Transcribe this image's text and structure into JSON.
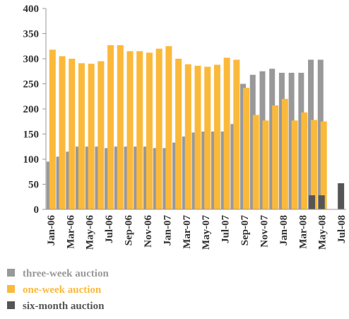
{
  "chart_data": {
    "type": "bar",
    "categories": [
      "Jan-06",
      null,
      "Mar-06",
      null,
      "May-06",
      null,
      "Jul-06",
      null,
      "Sep-06",
      null,
      "Nov-06",
      null,
      "Jan-07",
      null,
      "Mar-07",
      null,
      "May-07",
      null,
      "Jul-07",
      null,
      "Sep-07",
      null,
      "Nov-07",
      null,
      "Jan-08",
      null,
      "Mar-08",
      null,
      "May-08",
      null,
      "Jul-08"
    ],
    "series": [
      {
        "name": "three-week auction",
        "color": "#999999",
        "values": [
          95,
          105,
          115,
          125,
          125,
          125,
          122,
          125,
          125,
          125,
          125,
          122,
          122,
          133,
          145,
          153,
          155,
          155,
          155,
          170,
          250,
          268,
          275,
          280,
          272,
          272,
          272,
          298,
          298,
          null,
          null
        ]
      },
      {
        "name": "one-week auction",
        "color": "#fbb93b",
        "values": [
          318,
          305,
          300,
          291,
          290,
          295,
          327,
          327,
          315,
          315,
          312,
          320,
          325,
          300,
          289,
          286,
          284,
          288,
          302,
          298,
          242,
          188,
          177,
          207,
          220,
          177,
          193,
          178,
          175,
          null,
          null
        ]
      },
      {
        "name": "six-month auction",
        "color": "#555555",
        "values": [
          null,
          null,
          null,
          null,
          null,
          null,
          null,
          null,
          null,
          null,
          null,
          null,
          null,
          null,
          null,
          null,
          null,
          null,
          null,
          null,
          null,
          null,
          null,
          null,
          null,
          null,
          null,
          28,
          28,
          null,
          52
        ]
      }
    ],
    "ylim": [
      0,
      400
    ],
    "yticks": [
      0,
      50,
      100,
      150,
      200,
      250,
      300,
      350,
      400
    ]
  }
}
